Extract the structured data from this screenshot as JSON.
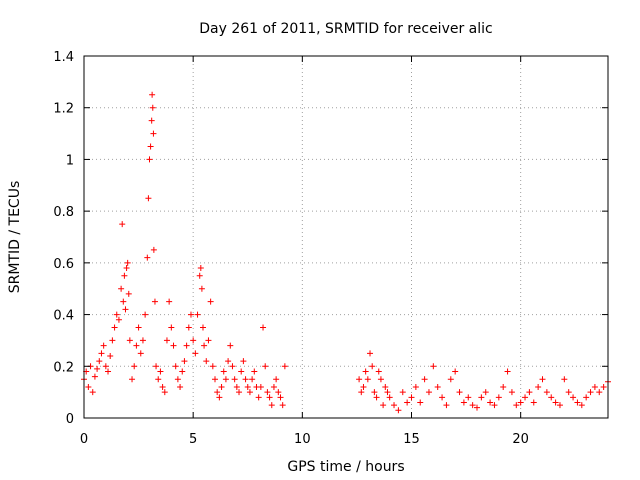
{
  "chart_data": {
    "type": "scatter",
    "title": "Day 261 of 2011, SRMTID for receiver alic",
    "xlabel": "GPS time / hours",
    "ylabel": "SRMTID / TECUs",
    "xlim": [
      0,
      24
    ],
    "ylim": [
      0,
      1.4
    ],
    "x_ticks": [
      0,
      5,
      10,
      15,
      20
    ],
    "x_tick_labels": [
      "0",
      "5",
      "10",
      "15",
      "20"
    ],
    "y_ticks": [
      0,
      0.2,
      0.4,
      0.6,
      0.8,
      1.0,
      1.2,
      1.4
    ],
    "y_tick_labels": [
      "0",
      "0.2",
      "0.4",
      "0.6",
      "0.8",
      "1",
      "1.2",
      "1.4"
    ],
    "grid": true,
    "marker": "+",
    "series_color": "#ff0000",
    "series": [
      {
        "name": "SRMTID",
        "x": [
          0.0,
          0.1,
          0.2,
          0.3,
          0.4,
          0.5,
          0.6,
          0.7,
          0.8,
          0.9,
          1.0,
          1.1,
          1.2,
          1.3,
          1.4,
          1.5,
          1.6,
          1.7,
          1.75,
          1.8,
          1.85,
          1.9,
          1.95,
          2.0,
          2.05,
          2.1,
          2.2,
          2.3,
          2.4,
          2.5,
          2.6,
          2.7,
          2.8,
          2.9,
          2.95,
          3.0,
          3.05,
          3.1,
          3.12,
          3.15,
          3.18,
          3.2,
          3.25,
          3.3,
          3.4,
          3.5,
          3.6,
          3.7,
          3.8,
          3.9,
          4.0,
          4.1,
          4.2,
          4.3,
          4.4,
          4.5,
          4.6,
          4.7,
          4.8,
          4.9,
          5.0,
          5.1,
          5.2,
          5.3,
          5.35,
          5.4,
          5.45,
          5.5,
          5.6,
          5.7,
          5.8,
          5.9,
          6.0,
          6.1,
          6.2,
          6.3,
          6.4,
          6.5,
          6.6,
          6.7,
          6.8,
          6.9,
          7.0,
          7.1,
          7.2,
          7.3,
          7.4,
          7.5,
          7.6,
          7.7,
          7.8,
          7.9,
          8.0,
          8.1,
          8.2,
          8.3,
          8.4,
          8.5,
          8.6,
          8.7,
          8.8,
          8.9,
          9.0,
          9.1,
          9.2,
          12.6,
          12.7,
          12.8,
          12.9,
          13.0,
          13.1,
          13.2,
          13.3,
          13.4,
          13.5,
          13.6,
          13.7,
          13.8,
          13.9,
          14.0,
          14.2,
          14.4,
          14.6,
          14.8,
          15.0,
          15.2,
          15.4,
          15.6,
          15.8,
          16.0,
          16.2,
          16.4,
          16.6,
          16.8,
          17.0,
          17.2,
          17.4,
          17.6,
          17.8,
          18.0,
          18.2,
          18.4,
          18.6,
          18.8,
          19.0,
          19.2,
          19.4,
          19.6,
          19.8,
          20.0,
          20.2,
          20.4,
          20.6,
          20.8,
          21.0,
          21.2,
          21.4,
          21.6,
          21.8,
          22.0,
          22.2,
          22.4,
          22.6,
          22.8,
          23.0,
          23.2,
          23.4,
          23.6,
          23.8,
          24.0
        ],
        "y": [
          0.15,
          0.18,
          0.12,
          0.2,
          0.1,
          0.16,
          0.19,
          0.22,
          0.25,
          0.28,
          0.2,
          0.18,
          0.24,
          0.3,
          0.35,
          0.4,
          0.38,
          0.5,
          0.75,
          0.45,
          0.55,
          0.42,
          0.58,
          0.6,
          0.48,
          0.3,
          0.15,
          0.2,
          0.28,
          0.35,
          0.25,
          0.3,
          0.4,
          0.62,
          0.85,
          1.0,
          1.05,
          1.15,
          1.25,
          1.2,
          1.1,
          0.65,
          0.45,
          0.2,
          0.15,
          0.18,
          0.12,
          0.1,
          0.3,
          0.45,
          0.35,
          0.28,
          0.2,
          0.15,
          0.12,
          0.18,
          0.22,
          0.28,
          0.35,
          0.4,
          0.3,
          0.25,
          0.4,
          0.55,
          0.58,
          0.5,
          0.35,
          0.28,
          0.22,
          0.3,
          0.45,
          0.2,
          0.15,
          0.1,
          0.08,
          0.12,
          0.18,
          0.15,
          0.22,
          0.28,
          0.2,
          0.15,
          0.12,
          0.1,
          0.18,
          0.22,
          0.15,
          0.12,
          0.1,
          0.15,
          0.18,
          0.12,
          0.08,
          0.12,
          0.35,
          0.2,
          0.1,
          0.08,
          0.05,
          0.12,
          0.15,
          0.1,
          0.08,
          0.05,
          0.2,
          0.15,
          0.1,
          0.12,
          0.18,
          0.15,
          0.25,
          0.2,
          0.1,
          0.08,
          0.18,
          0.15,
          0.05,
          0.12,
          0.1,
          0.08,
          0.05,
          0.03,
          0.1,
          0.06,
          0.08,
          0.12,
          0.06,
          0.15,
          0.1,
          0.2,
          0.12,
          0.08,
          0.05,
          0.15,
          0.18,
          0.1,
          0.06,
          0.08,
          0.05,
          0.04,
          0.08,
          0.1,
          0.06,
          0.05,
          0.08,
          0.12,
          0.18,
          0.1,
          0.05,
          0.06,
          0.08,
          0.1,
          0.06,
          0.12,
          0.15,
          0.1,
          0.08,
          0.06,
          0.05,
          0.15,
          0.1,
          0.08,
          0.06,
          0.05,
          0.08,
          0.1,
          0.12,
          0.1,
          0.12,
          0.14
        ]
      }
    ]
  }
}
